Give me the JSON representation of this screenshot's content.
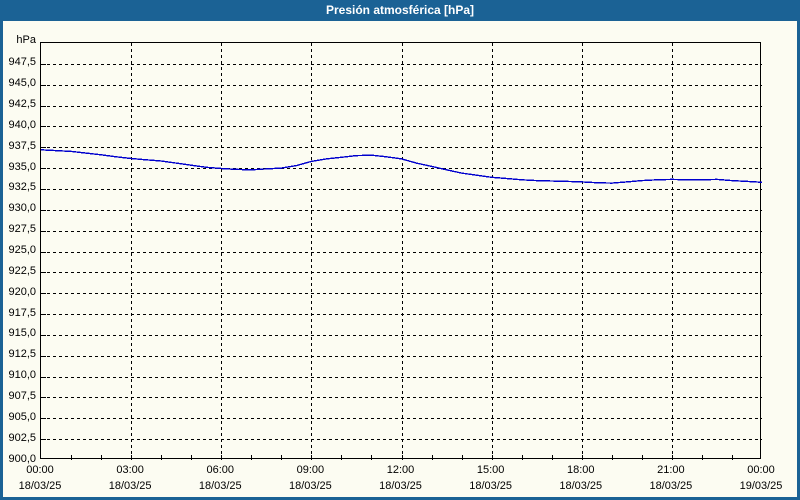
{
  "window": {
    "title": "Presión atmosférica [hPa]"
  },
  "colors": {
    "title_bar": "#1b6295",
    "window_border": "#1b6295",
    "content_bg": "#fcfcf2",
    "plot_border": "#000000",
    "grid": "#000000",
    "tick": "#000000",
    "label_text": "#000000",
    "title_text": "#ffffff",
    "line": "#0000cd"
  },
  "chart_data": {
    "type": "line",
    "title": "Presión atmosférica [hPa]",
    "unit_label": "hPa",
    "ylim": [
      900,
      950
    ],
    "ytick_step": 2.5,
    "ytick_labels_top_to_bottom": [
      "947,5",
      "945,0",
      "942,5",
      "940,0",
      "937,5",
      "935,0",
      "932,5",
      "930,0",
      "927,5",
      "925,0",
      "922,5",
      "920,0",
      "917,5",
      "915,0",
      "912,5",
      "910,0",
      "907,5",
      "905,0",
      "902,5",
      "900,0"
    ],
    "xlim_hours": [
      0,
      24
    ],
    "x_major_step_hours": 3,
    "x_minor_tick_step_hours": 1,
    "grid_style": "dashed",
    "legend": "none",
    "xtick_labels": [
      {
        "time": "00:00",
        "date": "18/03/25"
      },
      {
        "time": "03:00",
        "date": "18/03/25"
      },
      {
        "time": "06:00",
        "date": "18/03/25"
      },
      {
        "time": "09:00",
        "date": "18/03/25"
      },
      {
        "time": "12:00",
        "date": "18/03/25"
      },
      {
        "time": "15:00",
        "date": "18/03/25"
      },
      {
        "time": "18:00",
        "date": "18/03/25"
      },
      {
        "time": "21:00",
        "date": "18/03/25"
      },
      {
        "time": "00:00",
        "date": "19/03/25"
      }
    ],
    "series": [
      {
        "name": "Presión atmosférica",
        "color": "#0000cd",
        "points_hour_hpa": [
          [
            0,
            937.2
          ],
          [
            0.5,
            937.1
          ],
          [
            1,
            937.0
          ],
          [
            1.5,
            936.8
          ],
          [
            2,
            936.6
          ],
          [
            2.5,
            936.35
          ],
          [
            3,
            936.15
          ],
          [
            3.5,
            936.0
          ],
          [
            4,
            935.85
          ],
          [
            4.5,
            935.6
          ],
          [
            5,
            935.35
          ],
          [
            5.5,
            935.1
          ],
          [
            6,
            934.95
          ],
          [
            6.5,
            934.85
          ],
          [
            7,
            934.8
          ],
          [
            7.5,
            934.9
          ],
          [
            8,
            935.0
          ],
          [
            8.5,
            935.3
          ],
          [
            9,
            935.8
          ],
          [
            9.5,
            936.1
          ],
          [
            10,
            936.3
          ],
          [
            10.5,
            936.5
          ],
          [
            11,
            936.55
          ],
          [
            11.5,
            936.35
          ],
          [
            12,
            936.1
          ],
          [
            12.5,
            935.6
          ],
          [
            13,
            935.2
          ],
          [
            13.5,
            934.8
          ],
          [
            14,
            934.4
          ],
          [
            14.5,
            934.15
          ],
          [
            15,
            933.9
          ],
          [
            15.5,
            933.75
          ],
          [
            16,
            933.6
          ],
          [
            16.5,
            933.5
          ],
          [
            17,
            933.45
          ],
          [
            17.5,
            933.4
          ],
          [
            18,
            933.35
          ],
          [
            18.5,
            933.25
          ],
          [
            19,
            933.2
          ],
          [
            19.5,
            933.35
          ],
          [
            20,
            933.5
          ],
          [
            20.5,
            933.6
          ],
          [
            21,
            933.65
          ],
          [
            21.5,
            933.6
          ],
          [
            22,
            933.6
          ],
          [
            22.5,
            933.65
          ],
          [
            23,
            933.5
          ],
          [
            23.5,
            933.4
          ],
          [
            24,
            933.3
          ]
        ]
      }
    ]
  }
}
